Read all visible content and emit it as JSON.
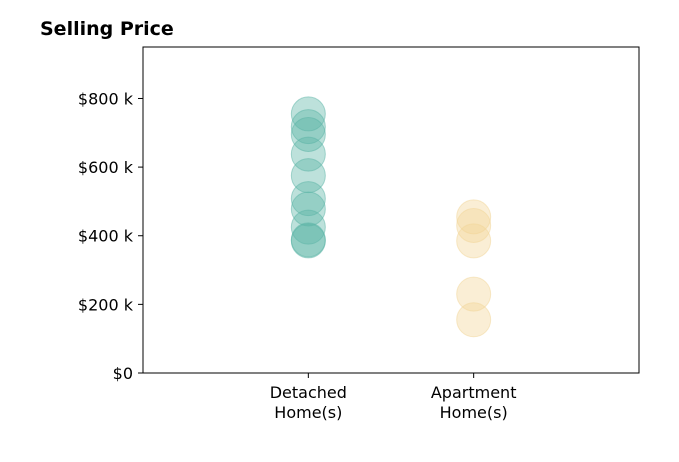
{
  "chart_data": {
    "type": "scatter",
    "title": "Selling Price",
    "xlabel": "",
    "ylabel": "",
    "categories": [
      "Detached\nHome(s)",
      "Apartment\nHome(s)"
    ],
    "xlim": [
      0,
      3
    ],
    "ylim": [
      0,
      950000
    ],
    "yticks": [
      0,
      200000,
      400000,
      600000,
      800000
    ],
    "ytick_labels": [
      "$0",
      "$200 k",
      "$400 k",
      "$600 k",
      "$800 k"
    ],
    "grid": false,
    "series": [
      {
        "category_index": 0,
        "color": "#5ab4a6",
        "values": [
          755000,
          718000,
          695000,
          638000,
          575000,
          508000,
          478000,
          425000,
          388000,
          385000
        ]
      },
      {
        "category_index": 1,
        "color": "#f2d597",
        "values": [
          455000,
          430000,
          385000,
          230000,
          155000
        ]
      }
    ]
  }
}
